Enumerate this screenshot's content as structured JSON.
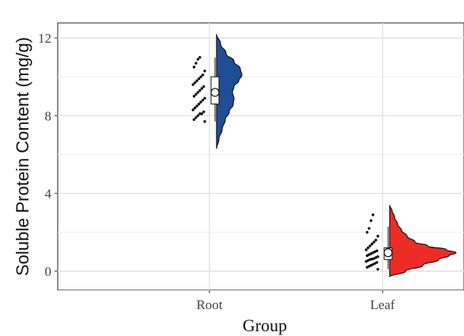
{
  "chart_data": {
    "type": "raincloud",
    "title": "",
    "xlabel": "Group",
    "ylabel": "Soluble Protein Content (mg/g)",
    "ylim": [
      -1,
      13
    ],
    "yticks": [
      0,
      4,
      8,
      12
    ],
    "grid": true,
    "legend": "none",
    "categories": [
      "Root",
      "Leaf"
    ],
    "series": [
      {
        "category": "Root",
        "color": "#1f4e97",
        "range": [
          6.3,
          12.2
        ],
        "box": {
          "q1": 8.6,
          "median": 9.2,
          "q3": 10.0,
          "whisker_low": 7.7,
          "whisker_high": 11.0
        },
        "mean": 9.2,
        "points": [
          7.7,
          7.8,
          7.9,
          8.0,
          8.1,
          8.1,
          8.2,
          8.3,
          8.4,
          8.5,
          8.6,
          8.7,
          8.8,
          8.9,
          9.0,
          9.1,
          9.2,
          9.3,
          9.4,
          9.5,
          9.6,
          9.7,
          9.8,
          9.9,
          10.0,
          10.1,
          10.3,
          10.5,
          10.7,
          10.9,
          11.0
        ]
      },
      {
        "category": "Leaf",
        "color": "#ee2b24",
        "range": [
          -0.3,
          3.4
        ],
        "box": {
          "q1": 0.6,
          "median": 0.9,
          "q3": 1.2,
          "whisker_low": 0.1,
          "whisker_high": 2.3
        },
        "mean": 0.95,
        "points": [
          0.1,
          0.2,
          0.25,
          0.3,
          0.35,
          0.4,
          0.45,
          0.5,
          0.55,
          0.6,
          0.62,
          0.65,
          0.7,
          0.75,
          0.8,
          0.85,
          0.9,
          0.95,
          1.0,
          1.05,
          1.1,
          1.2,
          1.3,
          1.4,
          1.5,
          1.6,
          1.8,
          2.0,
          2.2,
          2.6,
          2.9
        ]
      }
    ]
  }
}
